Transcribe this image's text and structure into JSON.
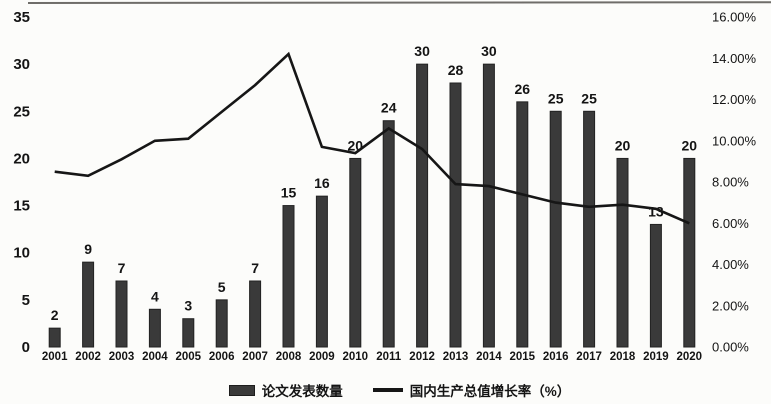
{
  "figure": {
    "legend": {
      "bar_label": "论文发表数量",
      "line_label": "国内生产总值增长率（%）"
    }
  },
  "colors": {
    "bar": "#3a3a3a",
    "bar_edge": "#222222",
    "line": "#161616",
    "text": "#141414",
    "background": "#fcfcfa",
    "scan_edge": "#4d4a45"
  },
  "chart_data": {
    "type": "bar+line combo",
    "title": "",
    "categories": [
      "2001",
      "2002",
      "2003",
      "2004",
      "2005",
      "2006",
      "2007",
      "2008",
      "2009",
      "2010",
      "2011",
      "2012",
      "2013",
      "2014",
      "2015",
      "2016",
      "2017",
      "2018",
      "2019",
      "2020"
    ],
    "series": [
      {
        "name": "论文发表数量",
        "type": "bar",
        "axis": "left",
        "color": "#3a3a3a",
        "data_labels": true,
        "values": [
          2,
          9,
          7,
          4,
          3,
          5,
          7,
          15,
          16,
          20,
          24,
          30,
          28,
          30,
          26,
          25,
          25,
          20,
          13,
          20
        ]
      },
      {
        "name": "国内生产总值增长率（%）",
        "type": "line",
        "axis": "right",
        "color": "#161616",
        "data_labels": false,
        "values": [
          8.5,
          8.3,
          9.1,
          10.0,
          10.1,
          11.4,
          12.7,
          14.2,
          9.7,
          9.4,
          10.6,
          9.6,
          7.9,
          7.8,
          7.4,
          7.0,
          6.8,
          6.9,
          6.7,
          6.0
        ]
      }
    ],
    "left_axis": {
      "min": 0,
      "max": 35,
      "step": 5,
      "tick_labels": [
        "0",
        "5",
        "10",
        "15",
        "20",
        "25",
        "30",
        "35"
      ]
    },
    "right_axis": {
      "min": 0,
      "max": 16,
      "step": 2,
      "tick_labels": [
        "0.00%",
        "2.00%",
        "4.00%",
        "6.00%",
        "8.00%",
        "10.00%",
        "12.00%",
        "14.00%",
        "16.00%"
      ]
    },
    "grid": false,
    "legend_position": "bottom"
  }
}
